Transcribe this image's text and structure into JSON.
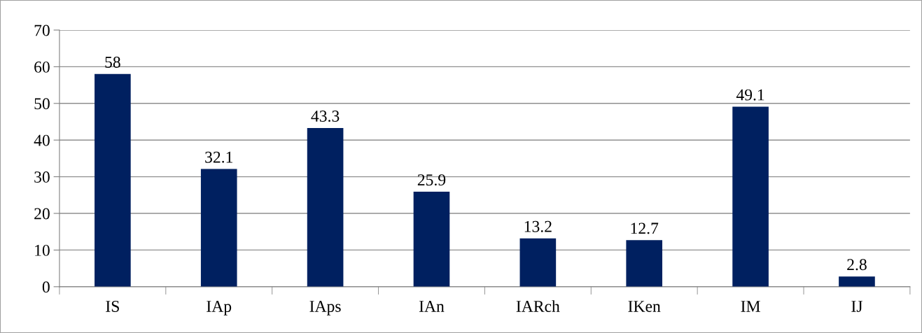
{
  "chart_data": {
    "type": "bar",
    "categories": [
      "IS",
      "IAp",
      "IAps",
      "IAn",
      "IARch",
      "IKen",
      "IM",
      "IJ"
    ],
    "values": [
      58,
      32.1,
      43.3,
      25.9,
      13.2,
      12.7,
      49.1,
      2.8
    ],
    "color": "#002060",
    "ylim": [
      0,
      70
    ],
    "yticks": [
      0,
      10,
      20,
      30,
      40,
      50,
      60,
      70
    ],
    "grid": "y",
    "data_labels": true,
    "legend": false
  }
}
